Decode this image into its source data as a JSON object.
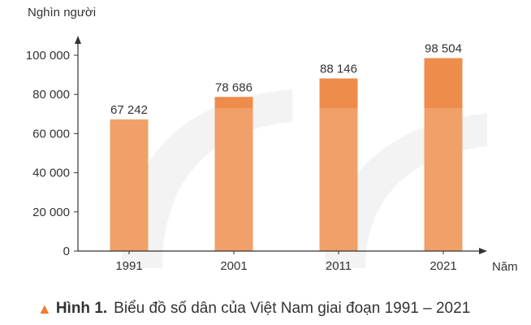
{
  "chart_data": {
    "type": "bar",
    "title": "",
    "xlabel": "Năm",
    "ylabel": "Nghìn người",
    "categories": [
      "1991",
      "2001",
      "2011",
      "2021"
    ],
    "values": [
      67242,
      78686,
      88146,
      98504
    ],
    "value_labels": [
      "67 242",
      "78 686",
      "88 146",
      "98 504"
    ],
    "ylim": [
      0,
      100000
    ],
    "yticks": [
      0,
      20000,
      40000,
      60000,
      80000,
      100000
    ],
    "ytick_labels": [
      "0",
      "20 000",
      "40 000",
      "60 000",
      "80 000",
      "100 000"
    ],
    "grid": false,
    "colors": {
      "bar_main": "#f0a068",
      "bar_top": "#ee8c4c",
      "axis": "#333333",
      "watermark": "#f3f3f3"
    }
  },
  "caption": {
    "icon": "triangle-icon",
    "figure_label": "Hình 1.",
    "text": "Biểu đồ số dân của Việt Nam giai đoạn 1991 – 2021"
  }
}
